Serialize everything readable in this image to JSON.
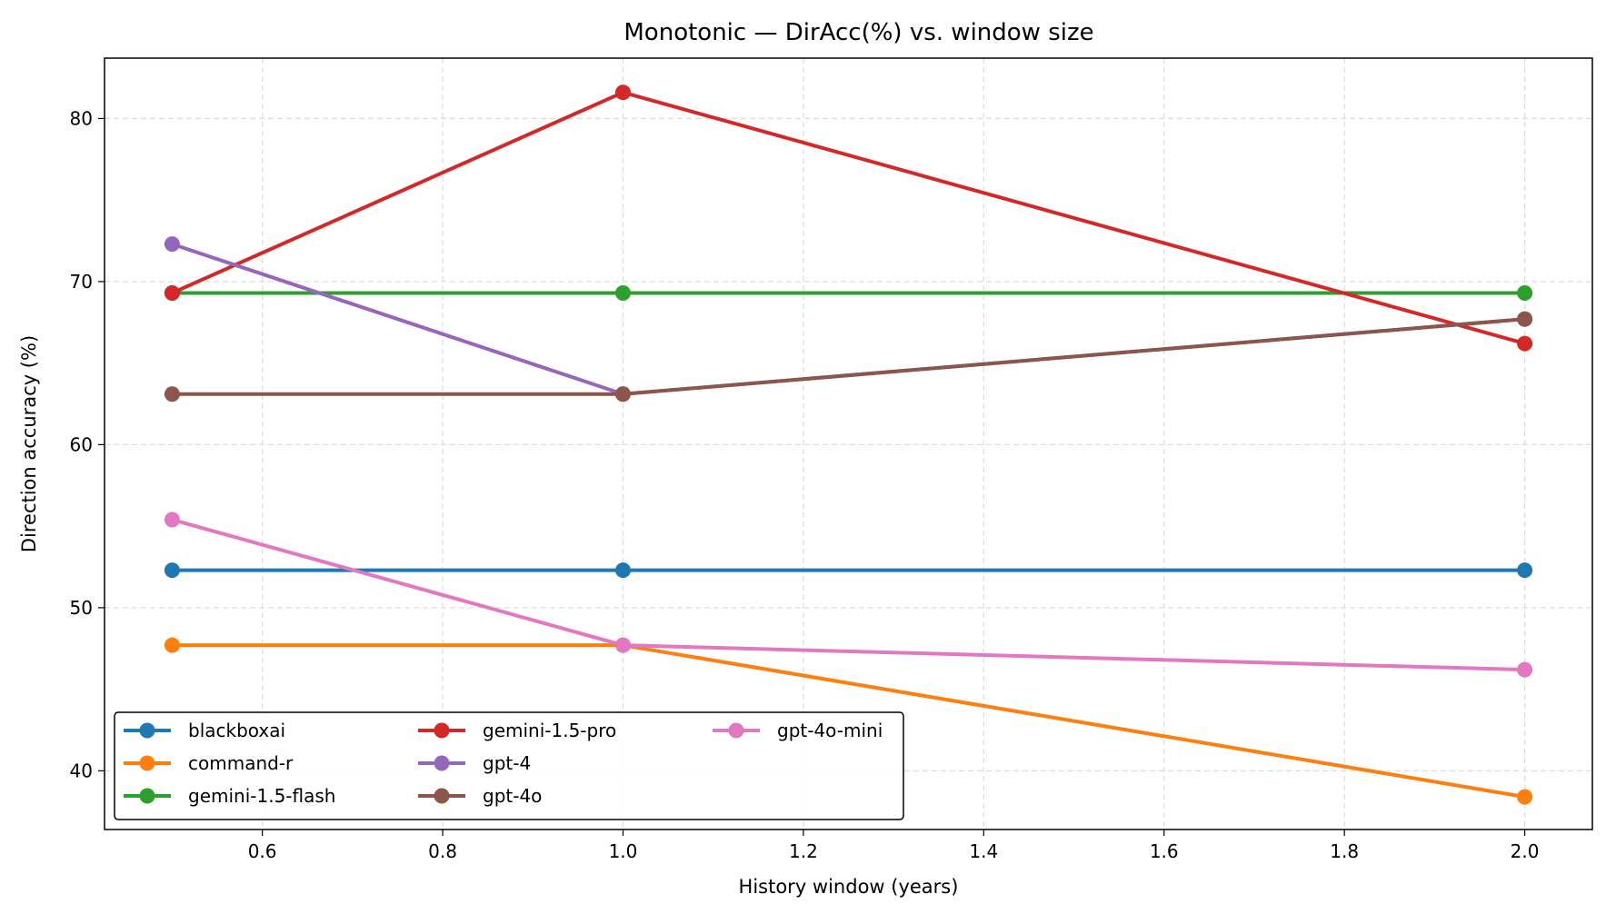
{
  "chart_data": {
    "type": "line",
    "title": "Monotonic — DirAcc(%) vs. window size",
    "xlabel": "History window (years)",
    "ylabel": "Direction accuracy (%)",
    "xlim": [
      0.425,
      2.075
    ],
    "ylim": [
      36.4,
      83.7
    ],
    "xticks": [
      0.6,
      0.8,
      1.0,
      1.2,
      1.4,
      1.6,
      1.8,
      2.0
    ],
    "yticks": [
      40,
      50,
      60,
      70,
      80
    ],
    "grid": true,
    "legend_position": "lower-left",
    "x": [
      0.5,
      1.0,
      2.0
    ],
    "series": [
      {
        "name": "blackboxai",
        "color": "#1f77b4",
        "values": [
          52.3,
          52.3,
          52.3
        ]
      },
      {
        "name": "command-r",
        "color": "#ff7f0e",
        "values": [
          47.7,
          47.7,
          38.4
        ]
      },
      {
        "name": "gemini-1.5-flash",
        "color": "#2ca02c",
        "values": [
          69.3,
          69.3,
          69.3
        ]
      },
      {
        "name": "gemini-1.5-pro",
        "color": "#d62728",
        "values": [
          69.3,
          81.6,
          66.2
        ]
      },
      {
        "name": "gpt-4",
        "color": "#9467bd",
        "values": [
          72.3,
          63.1,
          67.7
        ]
      },
      {
        "name": "gpt-4o",
        "color": "#8c564b",
        "values": [
          63.1,
          63.1,
          67.7
        ]
      },
      {
        "name": "gpt-4o-mini",
        "color": "#e377c2",
        "values": [
          55.4,
          47.7,
          46.2
        ]
      }
    ]
  }
}
